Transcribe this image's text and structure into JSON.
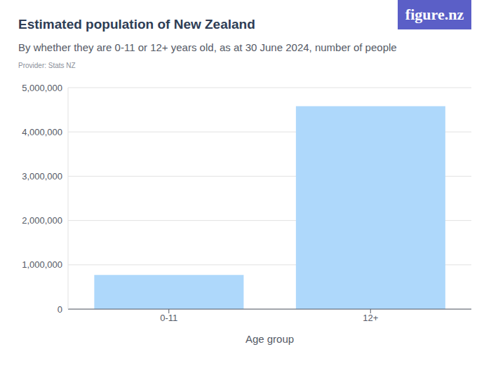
{
  "chart_data": {
    "type": "bar",
    "title": "Estimated population of New Zealand",
    "subtitle": "By whether they are 0-11 or 12+ years old, as at 30 June 2024, number of people",
    "provider": "Provider: Stats NZ",
    "logo": "figure.nz",
    "x_label": "Age group",
    "categories": [
      "0-11",
      "12+"
    ],
    "values": [
      770000,
      4580000
    ],
    "color": "#aed8fb",
    "ylim": [
      0,
      5000000
    ],
    "yticks": [
      0,
      {
        "value": 1000000,
        "label": "1,000,000"
      },
      {
        "value": 2000000,
        "label": "2,000,000"
      },
      {
        "value": 3000000,
        "label": "3,000,000"
      },
      {
        "value": 4000000,
        "label": "4,000,000"
      },
      {
        "value": 5000000,
        "label": "5,000,000"
      }
    ],
    "grid": true
  }
}
